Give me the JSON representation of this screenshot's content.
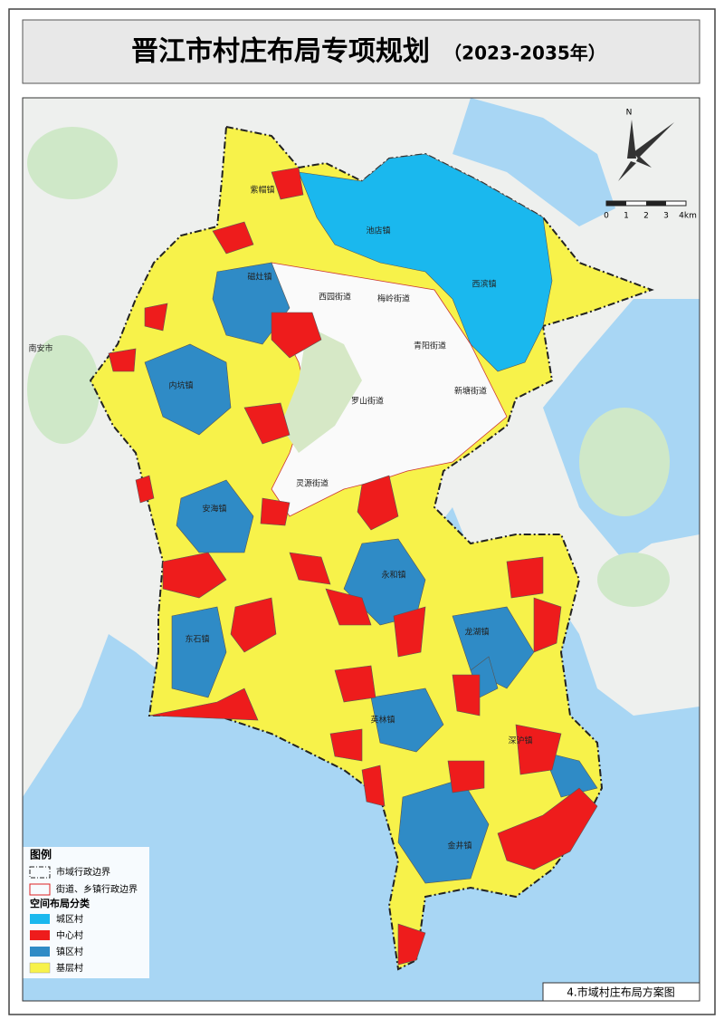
{
  "header": {
    "title": "晋江市村庄布局专项规划",
    "subtitle": "（2023-2035年）"
  },
  "north_arrow": {
    "label": "N"
  },
  "scale_bar": {
    "labels": [
      "0",
      "1",
      "2",
      "3",
      "4km"
    ]
  },
  "places": [
    "紫帽镇",
    "池店镇",
    "磁灶镇",
    "西园街道",
    "梅岭街道",
    "青阳街道",
    "新塘街道",
    "西滨镇",
    "内坑镇",
    "罗山街道",
    "灵源街道",
    "安海镇",
    "永和镇",
    "龙湖镇",
    "东石镇",
    "英林镇",
    "深沪镇",
    "金井镇",
    "南安市"
  ],
  "legend": {
    "title": "图例",
    "boundaries": [
      "市域行政边界",
      "街道、乡镇行政边界"
    ],
    "category_title": "空间布局分类",
    "categories": [
      "城区村",
      "中心村",
      "镇区村",
      "基层村"
    ]
  },
  "footer": "4.市域村庄布局方案图"
}
